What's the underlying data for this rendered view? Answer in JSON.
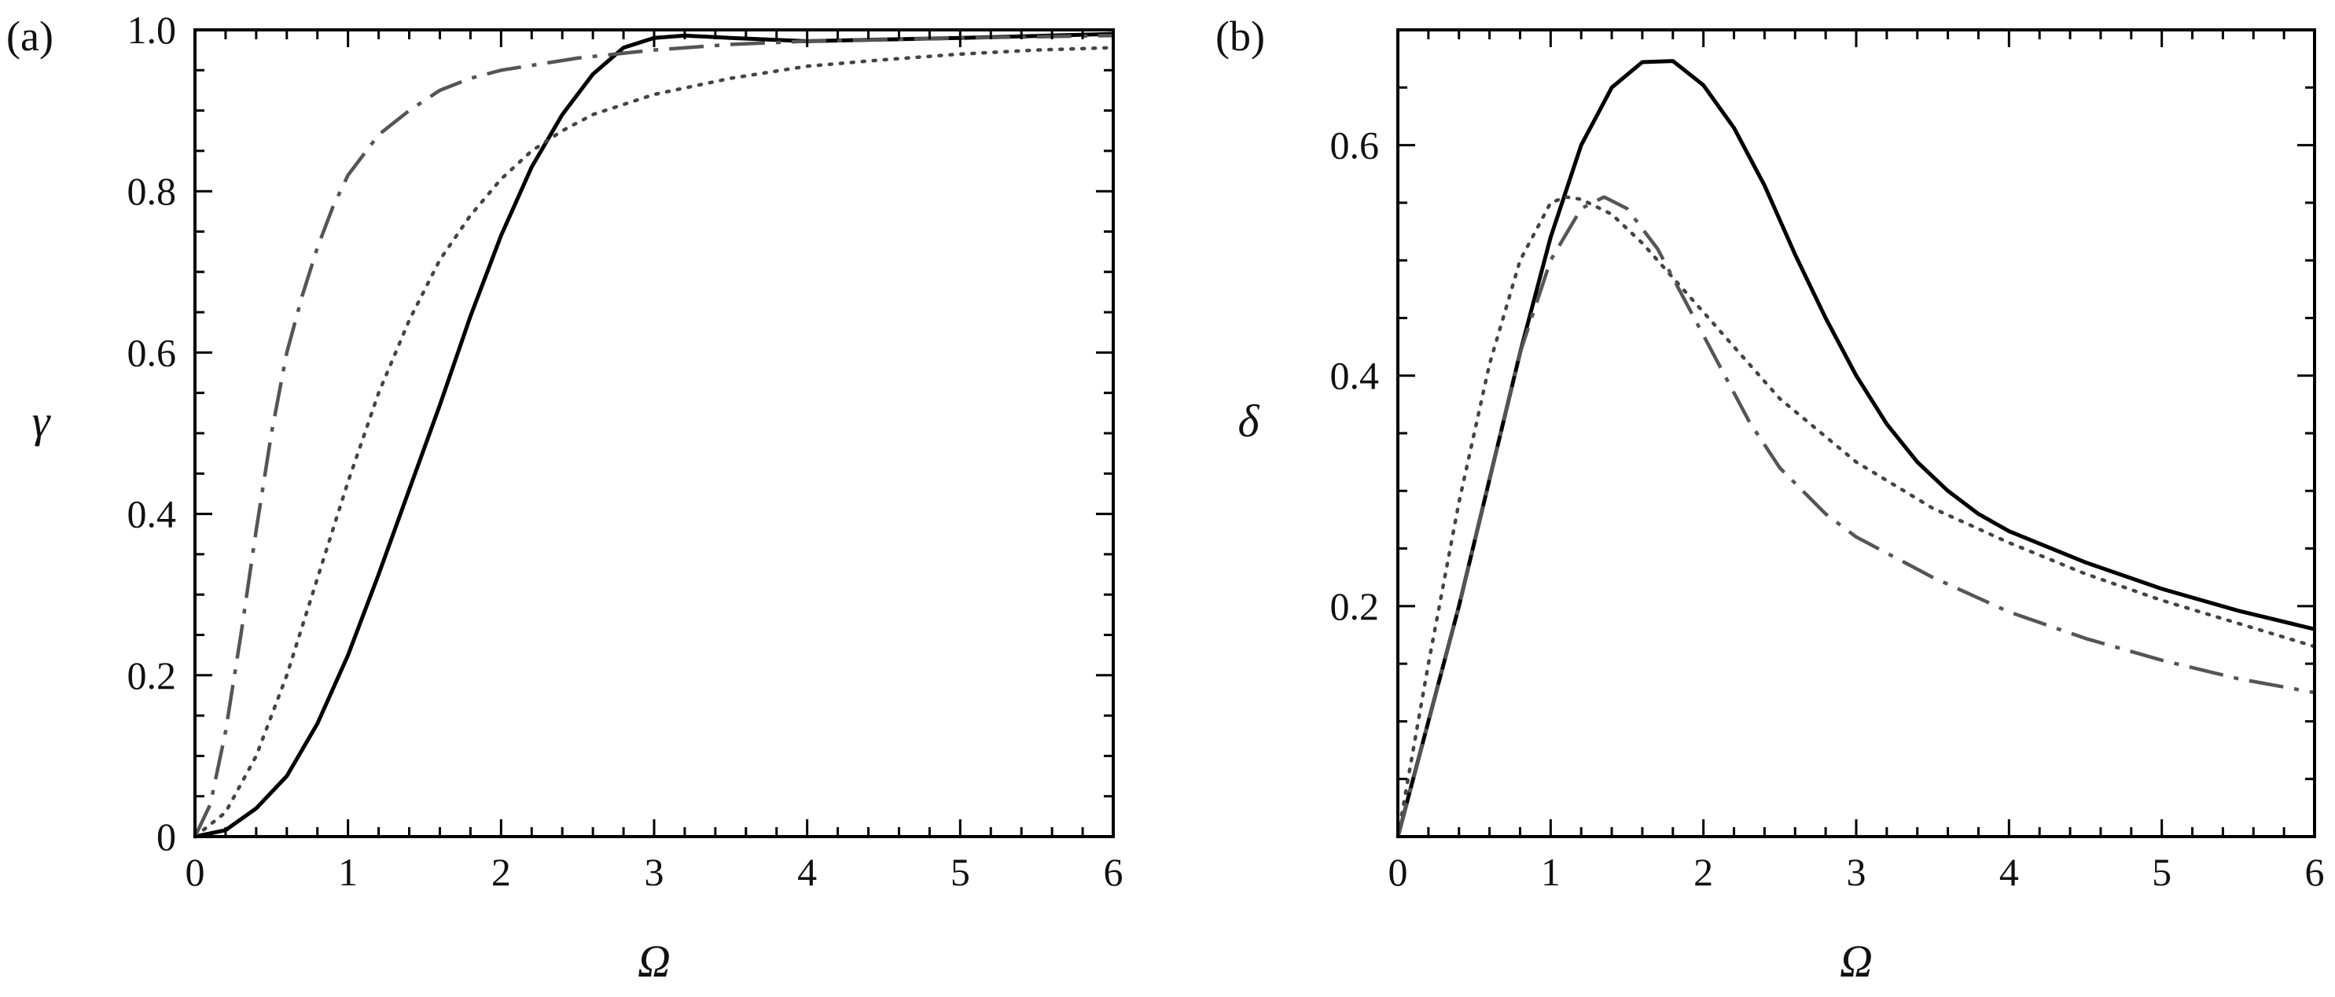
{
  "chart_data": [
    {
      "type": "line",
      "panel_label": "(a)",
      "xlabel": "Ω",
      "ylabel": "γ",
      "xlim": [
        0,
        6
      ],
      "ylim": [
        0,
        1
      ],
      "xticks": [
        "0",
        "1",
        "2",
        "3",
        "4",
        "5",
        "6"
      ],
      "yticks": [
        "0",
        "0.2",
        "0.4",
        "0.6",
        "0.8",
        "1.0"
      ],
      "grid": false,
      "series": [
        {
          "style": "solid",
          "color": "#000000",
          "x": [
            0,
            0.2,
            0.4,
            0.6,
            0.8,
            1.0,
            1.2,
            1.4,
            1.6,
            1.8,
            2.0,
            2.2,
            2.4,
            2.6,
            2.8,
            3.0,
            3.2,
            3.5,
            4.0,
            4.5,
            5.0,
            6.0
          ],
          "y": [
            0,
            0.008,
            0.035,
            0.075,
            0.14,
            0.225,
            0.325,
            0.43,
            0.535,
            0.645,
            0.745,
            0.83,
            0.895,
            0.945,
            0.978,
            0.99,
            0.993,
            0.99,
            0.986,
            0.988,
            0.99,
            0.995
          ]
        },
        {
          "style": "dotted",
          "color": "#444444",
          "x": [
            0,
            0.2,
            0.4,
            0.6,
            0.8,
            1.0,
            1.2,
            1.4,
            1.6,
            1.8,
            2.0,
            2.2,
            2.4,
            2.6,
            3.0,
            3.5,
            4.0,
            4.5,
            5.0,
            5.5,
            6.0
          ],
          "y": [
            0,
            0.03,
            0.1,
            0.2,
            0.32,
            0.44,
            0.55,
            0.64,
            0.715,
            0.77,
            0.815,
            0.85,
            0.875,
            0.895,
            0.92,
            0.94,
            0.955,
            0.963,
            0.97,
            0.975,
            0.978
          ]
        },
        {
          "style": "dashdot",
          "color": "#555555",
          "x": [
            0,
            0.1,
            0.2,
            0.3,
            0.4,
            0.5,
            0.6,
            0.7,
            0.8,
            0.9,
            1.0,
            1.2,
            1.4,
            1.6,
            1.8,
            2.0,
            2.5,
            3.0,
            3.5,
            4.0,
            5.0,
            6.0
          ],
          "y": [
            0,
            0.04,
            0.13,
            0.25,
            0.38,
            0.5,
            0.6,
            0.67,
            0.73,
            0.78,
            0.82,
            0.87,
            0.9,
            0.925,
            0.94,
            0.95,
            0.965,
            0.975,
            0.982,
            0.986,
            0.99,
            0.993
          ]
        }
      ]
    },
    {
      "type": "line",
      "panel_label": "(b)",
      "xlabel": "Ω",
      "ylabel": "δ",
      "xlim": [
        0,
        6
      ],
      "ylim": [
        0,
        0.7
      ],
      "xticks": [
        "0",
        "1",
        "2",
        "3",
        "4",
        "5",
        "6"
      ],
      "yticks": [
        "0.2",
        "0.4",
        "0.6"
      ],
      "grid": false,
      "series": [
        {
          "style": "solid",
          "color": "#000000",
          "x": [
            0,
            0.2,
            0.4,
            0.6,
            0.8,
            1.0,
            1.2,
            1.4,
            1.6,
            1.8,
            2.0,
            2.2,
            2.4,
            2.6,
            2.8,
            3.0,
            3.2,
            3.4,
            3.6,
            3.8,
            4.0,
            4.5,
            5.0,
            5.5,
            6.0
          ],
          "y": [
            0,
            0.1,
            0.2,
            0.31,
            0.42,
            0.52,
            0.6,
            0.65,
            0.672,
            0.673,
            0.652,
            0.615,
            0.565,
            0.505,
            0.45,
            0.4,
            0.358,
            0.325,
            0.3,
            0.28,
            0.265,
            0.238,
            0.215,
            0.196,
            0.18
          ]
        },
        {
          "style": "dotted",
          "color": "#444444",
          "x": [
            0,
            0.2,
            0.4,
            0.6,
            0.8,
            1.0,
            1.1,
            1.2,
            1.4,
            1.6,
            1.8,
            2.0,
            2.2,
            2.5,
            3.0,
            3.5,
            4.0,
            4.5,
            5.0,
            5.5,
            6.0
          ],
          "y": [
            0,
            0.15,
            0.29,
            0.41,
            0.5,
            0.55,
            0.555,
            0.553,
            0.54,
            0.515,
            0.485,
            0.455,
            0.425,
            0.38,
            0.325,
            0.285,
            0.255,
            0.228,
            0.205,
            0.185,
            0.165
          ]
        },
        {
          "style": "dashdot",
          "color": "#555555",
          "x": [
            0,
            0.2,
            0.4,
            0.6,
            0.8,
            1.0,
            1.2,
            1.35,
            1.5,
            1.7,
            1.9,
            2.1,
            2.3,
            2.5,
            2.8,
            3.0,
            3.5,
            4.0,
            4.5,
            5.0,
            5.5,
            6.0
          ],
          "y": [
            0,
            0.1,
            0.2,
            0.31,
            0.42,
            0.5,
            0.545,
            0.555,
            0.545,
            0.51,
            0.46,
            0.41,
            0.36,
            0.32,
            0.28,
            0.26,
            0.225,
            0.195,
            0.172,
            0.153,
            0.137,
            0.125
          ]
        }
      ]
    }
  ]
}
